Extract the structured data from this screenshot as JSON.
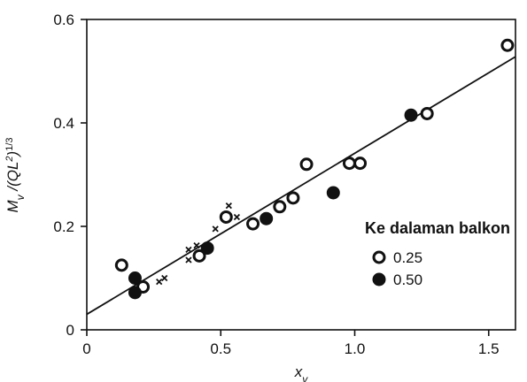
{
  "chart_data": {
    "type": "scatter",
    "title": "",
    "xlabel": "x_v",
    "ylabel": "M_v / (QL^2)^1/3",
    "xlim": [
      0,
      1.6
    ],
    "ylim": [
      0,
      0.6
    ],
    "x_ticks": [
      "0",
      "0.5",
      "1.0",
      "1.5"
    ],
    "y_ticks": [
      "0",
      "0.2",
      "0.4",
      "0.6"
    ],
    "grid": false,
    "legend": {
      "title": "Ke dalaman balkon",
      "placement": "right",
      "entries": [
        "0.25",
        "0.50"
      ]
    },
    "series": [
      {
        "name": "0.25",
        "marker": "open-circle",
        "points": [
          {
            "x": 0.13,
            "y": 0.125
          },
          {
            "x": 0.21,
            "y": 0.083
          },
          {
            "x": 0.42,
            "y": 0.143
          },
          {
            "x": 0.52,
            "y": 0.218
          },
          {
            "x": 0.62,
            "y": 0.205
          },
          {
            "x": 0.72,
            "y": 0.238
          },
          {
            "x": 0.77,
            "y": 0.255
          },
          {
            "x": 0.82,
            "y": 0.32
          },
          {
            "x": 0.98,
            "y": 0.322
          },
          {
            "x": 1.02,
            "y": 0.322
          },
          {
            "x": 1.27,
            "y": 0.418
          },
          {
            "x": 1.57,
            "y": 0.55
          }
        ]
      },
      {
        "name": "0.50",
        "marker": "filled-circle",
        "points": [
          {
            "x": 0.18,
            "y": 0.1
          },
          {
            "x": 0.18,
            "y": 0.072
          },
          {
            "x": 0.45,
            "y": 0.158
          },
          {
            "x": 0.67,
            "y": 0.215
          },
          {
            "x": 0.92,
            "y": 0.265
          },
          {
            "x": 1.21,
            "y": 0.415
          }
        ]
      },
      {
        "marker": "cross",
        "points": [
          {
            "x": 0.27,
            "y": 0.093
          },
          {
            "x": 0.29,
            "y": 0.1
          },
          {
            "x": 0.38,
            "y": 0.135
          },
          {
            "x": 0.38,
            "y": 0.155
          },
          {
            "x": 0.41,
            "y": 0.163
          },
          {
            "x": 0.48,
            "y": 0.195
          },
          {
            "x": 0.53,
            "y": 0.24
          },
          {
            "x": 0.56,
            "y": 0.218
          }
        ]
      }
    ],
    "fit_line": {
      "x": [
        0,
        1.6
      ],
      "y": [
        0.03,
        0.528
      ]
    }
  }
}
